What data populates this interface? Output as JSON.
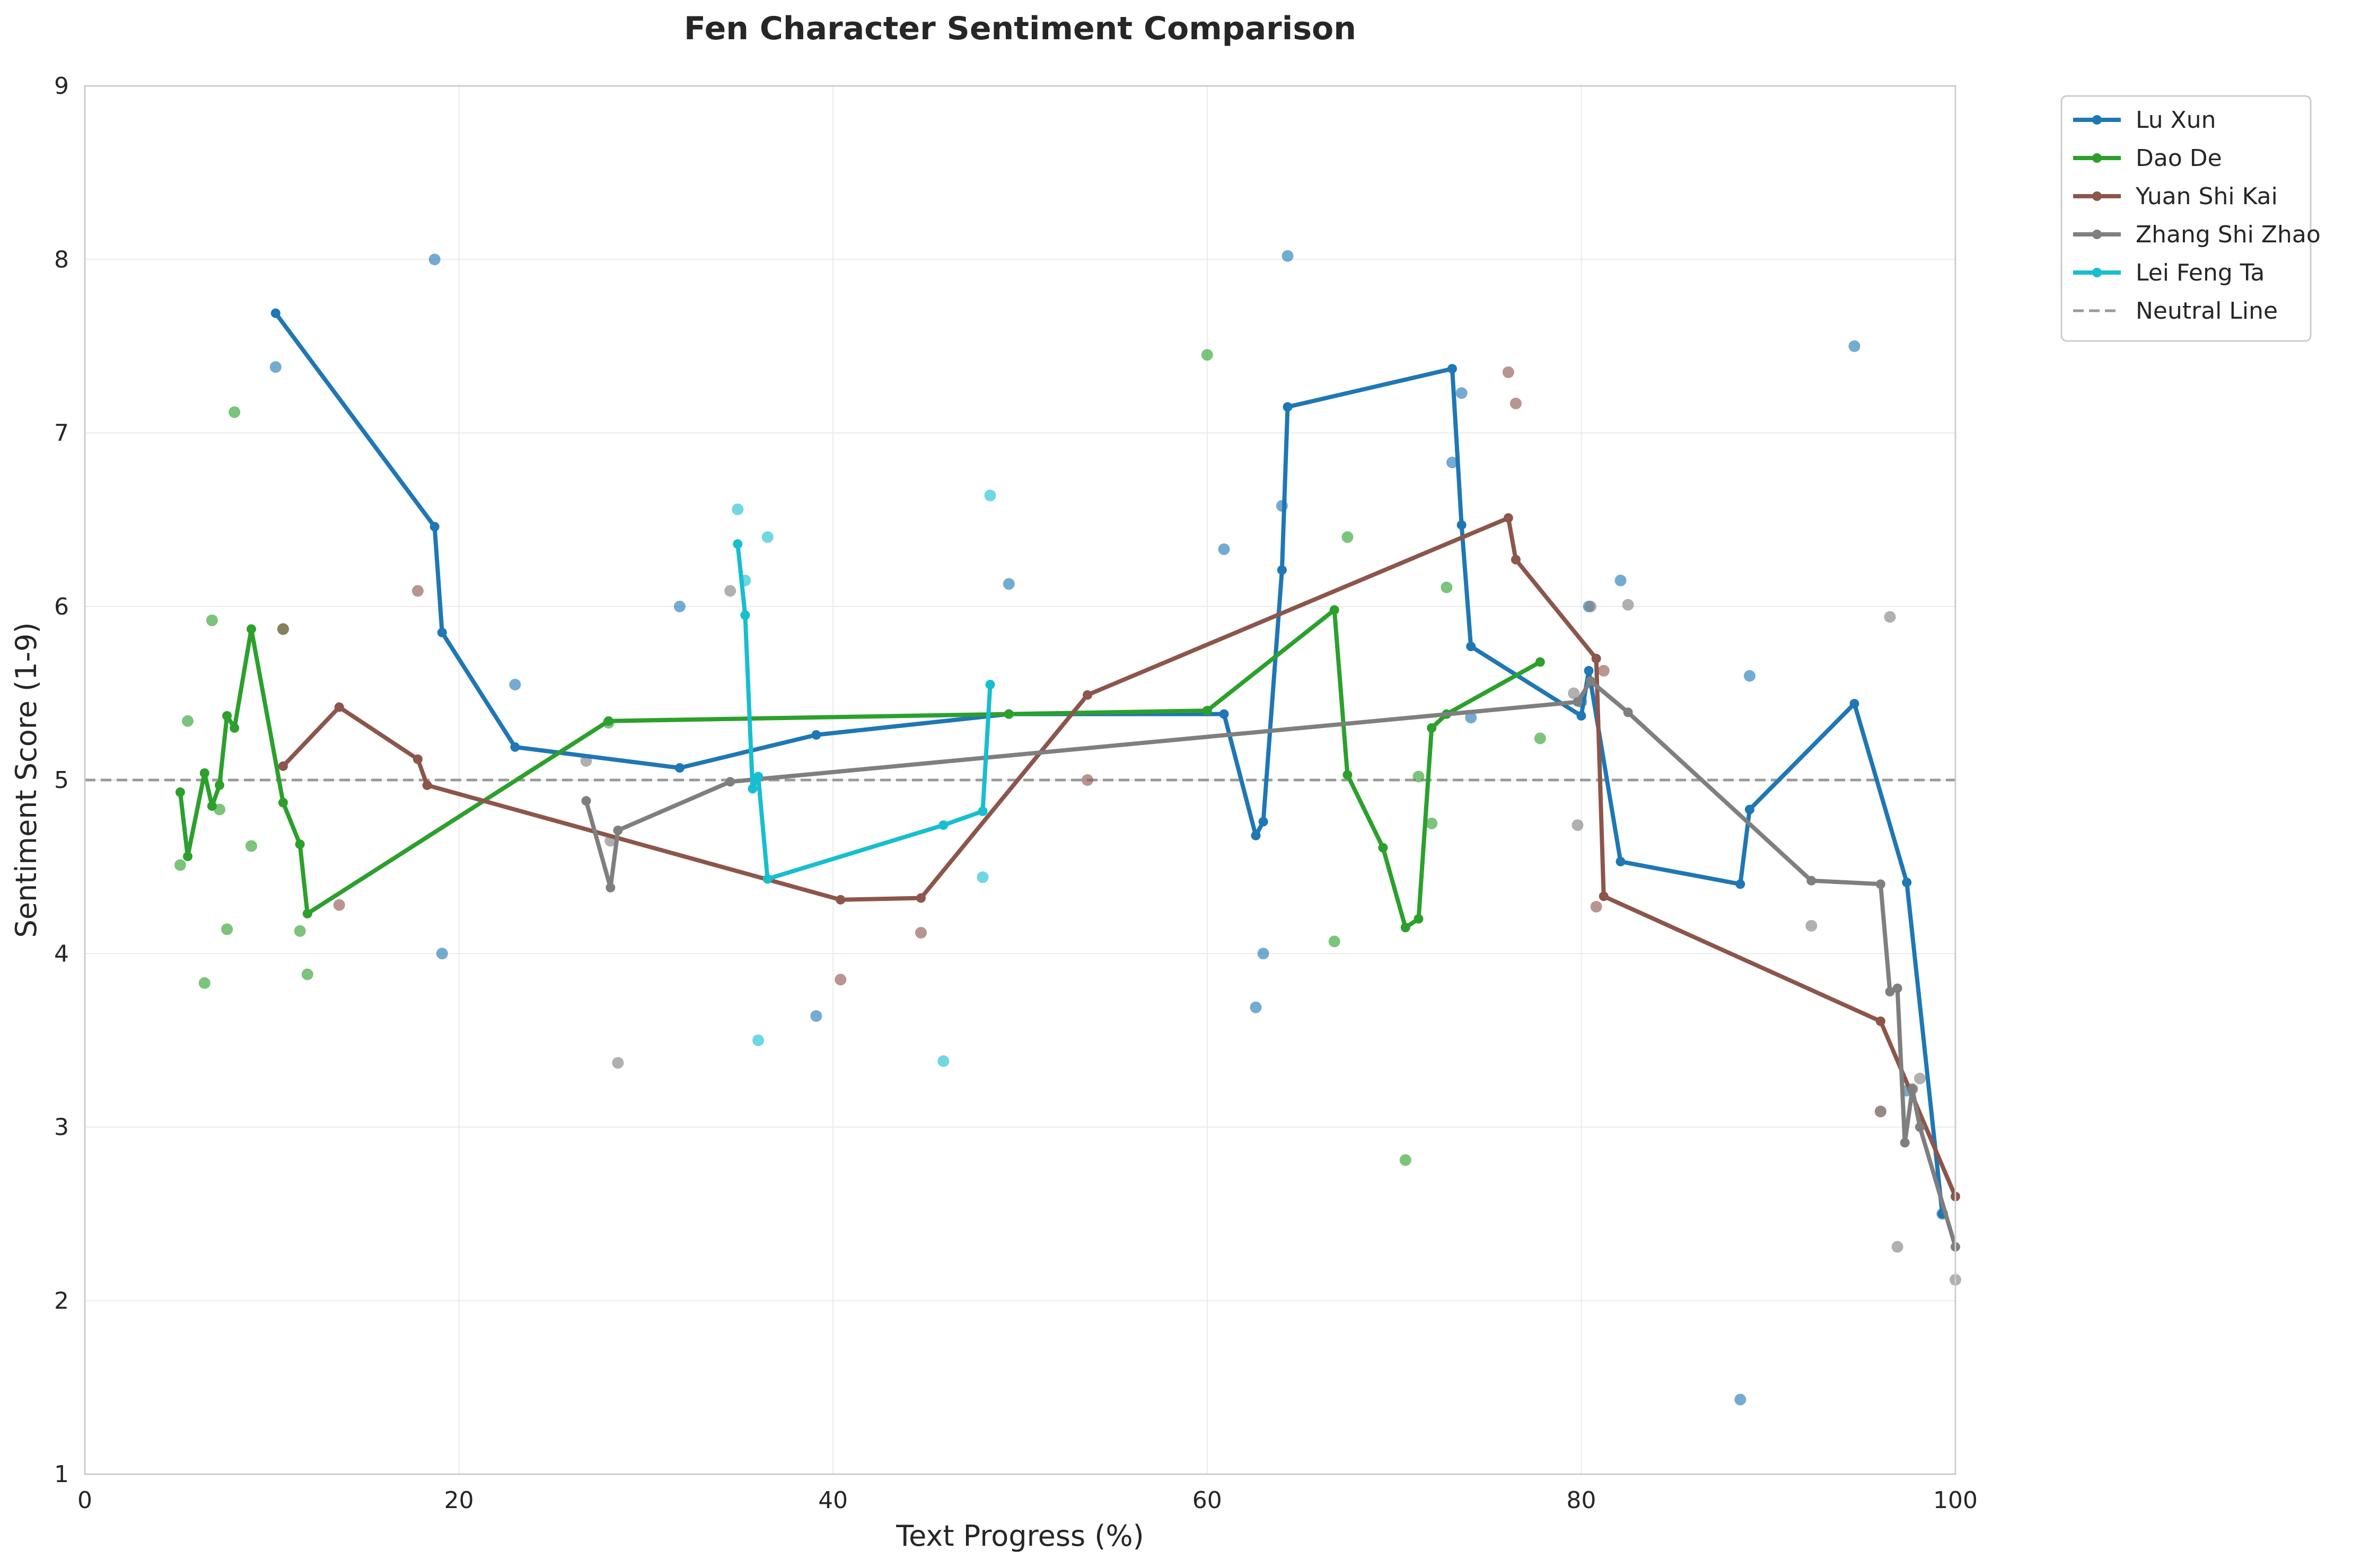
{
  "chart_data": {
    "type": "line",
    "title": "Fen Character Sentiment Comparison",
    "xlabel": "Text Progress (%)",
    "ylabel": "Sentiment Score (1-9)",
    "xlim": [
      0,
      100
    ],
    "ylim": [
      1,
      9
    ],
    "xticks": [
      "0",
      "20",
      "40",
      "60",
      "80",
      "100"
    ],
    "yticks": [
      "1",
      "2",
      "3",
      "4",
      "5",
      "6",
      "7",
      "8",
      "9"
    ],
    "grid": true,
    "legend_position": "outside-top-right",
    "neutral_line": {
      "label": "Neutral Line",
      "y": 5,
      "color": "#999999"
    },
    "series": [
      {
        "name": "Lu Xun",
        "color": "#1f77b4",
        "x": [
          10.2,
          18.7,
          19.1,
          23.0,
          31.8,
          39.1,
          49.4,
          60.9,
          62.6,
          63.0,
          64.0,
          64.3,
          73.1,
          73.6,
          74.1,
          80.0,
          80.4,
          82.1,
          88.5,
          89.0,
          94.6,
          97.4,
          99.3
        ],
        "y": [
          7.69,
          6.46,
          5.85,
          5.19,
          5.07,
          5.26,
          5.38,
          5.38,
          4.68,
          4.76,
          6.21,
          7.15,
          7.37,
          6.47,
          5.77,
          5.37,
          5.63,
          4.53,
          4.4,
          4.83,
          5.44,
          4.41,
          2.5
        ],
        "scatter": [
          [
            10.2,
            7.38
          ],
          [
            18.7,
            8.0
          ],
          [
            19.1,
            4.0
          ],
          [
            23.0,
            5.55
          ],
          [
            31.8,
            6.0
          ],
          [
            39.1,
            3.64
          ],
          [
            49.4,
            6.13
          ],
          [
            60.9,
            6.33
          ],
          [
            62.6,
            3.69
          ],
          [
            63.0,
            4.0
          ],
          [
            64.0,
            6.58
          ],
          [
            64.3,
            8.02
          ],
          [
            73.1,
            6.83
          ],
          [
            73.6,
            7.23
          ],
          [
            74.1,
            5.36
          ],
          [
            80.0,
            5.45
          ],
          [
            80.4,
            6.0
          ],
          [
            82.1,
            6.15
          ],
          [
            88.5,
            1.43
          ],
          [
            89.0,
            5.6
          ],
          [
            94.6,
            7.5
          ],
          [
            97.4,
            3.21
          ],
          [
            99.3,
            2.5
          ]
        ]
      },
      {
        "name": "Dao De",
        "color": "#2ca02c",
        "x": [
          5.1,
          5.5,
          6.4,
          6.8,
          7.2,
          7.6,
          8.0,
          8.9,
          10.6,
          11.5,
          11.9,
          28.0,
          49.4,
          60.0,
          66.8,
          67.5,
          69.4,
          70.6,
          71.3,
          72.0,
          72.8,
          77.8
        ],
        "y": [
          4.93,
          4.56,
          5.04,
          4.85,
          4.97,
          5.37,
          5.3,
          5.87,
          4.87,
          4.63,
          4.23,
          5.34,
          5.38,
          5.4,
          5.98,
          5.03,
          4.61,
          4.15,
          4.2,
          5.3,
          5.38,
          5.68
        ],
        "scatter": [
          [
            5.1,
            4.51
          ],
          [
            5.5,
            5.34
          ],
          [
            6.4,
            3.83
          ],
          [
            6.8,
            5.92
          ],
          [
            7.2,
            4.83
          ],
          [
            7.6,
            4.14
          ],
          [
            8.0,
            7.12
          ],
          [
            8.9,
            4.62
          ],
          [
            10.6,
            5.87
          ],
          [
            11.5,
            4.13
          ],
          [
            11.9,
            3.88
          ],
          [
            28.0,
            5.33
          ],
          [
            60.0,
            7.45
          ],
          [
            66.8,
            4.07
          ],
          [
            67.5,
            6.4
          ],
          [
            70.6,
            2.81
          ],
          [
            71.3,
            5.02
          ],
          [
            72.0,
            4.75
          ],
          [
            72.8,
            6.11
          ],
          [
            77.8,
            5.24
          ]
        ]
      },
      {
        "name": "Yuan Shi Kai",
        "color": "#8c564b",
        "x": [
          10.6,
          13.6,
          17.8,
          18.3,
          40.4,
          44.7,
          53.6,
          76.1,
          76.5,
          80.8,
          81.2,
          96.0,
          100.0
        ],
        "y": [
          5.08,
          5.42,
          5.12,
          4.97,
          4.31,
          4.32,
          5.49,
          6.51,
          6.27,
          5.7,
          4.33,
          3.61,
          2.6
        ],
        "scatter": [
          [
            10.6,
            5.87
          ],
          [
            13.6,
            4.28
          ],
          [
            17.8,
            6.09
          ],
          [
            40.4,
            3.85
          ],
          [
            44.7,
            4.12
          ],
          [
            53.6,
            5.0
          ],
          [
            76.1,
            7.35
          ],
          [
            76.5,
            7.17
          ],
          [
            80.8,
            4.27
          ],
          [
            81.2,
            5.63
          ],
          [
            96.0,
            3.09
          ]
        ]
      },
      {
        "name": "Zhang Shi Zhao",
        "color": "#7f7f7f",
        "x": [
          26.8,
          28.1,
          28.5,
          34.5,
          79.8,
          80.5,
          82.5,
          92.3,
          96.0,
          96.5,
          96.9,
          97.3,
          97.7,
          98.1,
          100.0
        ],
        "y": [
          4.88,
          4.38,
          4.71,
          4.99,
          5.45,
          5.57,
          5.39,
          4.42,
          4.4,
          3.78,
          3.8,
          2.91,
          3.22,
          3.0,
          2.31
        ],
        "scatter": [
          [
            26.8,
            5.11
          ],
          [
            28.1,
            4.65
          ],
          [
            28.5,
            3.37
          ],
          [
            34.5,
            6.09
          ],
          [
            79.6,
            5.5
          ],
          [
            79.8,
            4.74
          ],
          [
            80.5,
            6.0
          ],
          [
            82.5,
            6.01
          ],
          [
            92.3,
            4.16
          ],
          [
            96.0,
            3.09
          ],
          [
            96.5,
            5.94
          ],
          [
            96.9,
            2.31
          ],
          [
            97.7,
            3.22
          ],
          [
            98.1,
            3.28
          ],
          [
            100.0,
            2.12
          ]
        ]
      },
      {
        "name": "Lei Feng Ta",
        "color": "#17becf",
        "x": [
          34.9,
          35.3,
          35.7,
          36.0,
          36.5,
          45.9,
          48.0,
          48.4
        ],
        "y": [
          6.36,
          5.95,
          4.95,
          5.02,
          4.43,
          4.74,
          4.82,
          5.55
        ],
        "scatter": [
          [
            34.9,
            6.56
          ],
          [
            35.3,
            6.15
          ],
          [
            36.0,
            3.5
          ],
          [
            36.5,
            6.4
          ],
          [
            45.9,
            3.38
          ],
          [
            48.0,
            4.44
          ],
          [
            48.4,
            6.64
          ]
        ]
      }
    ]
  }
}
